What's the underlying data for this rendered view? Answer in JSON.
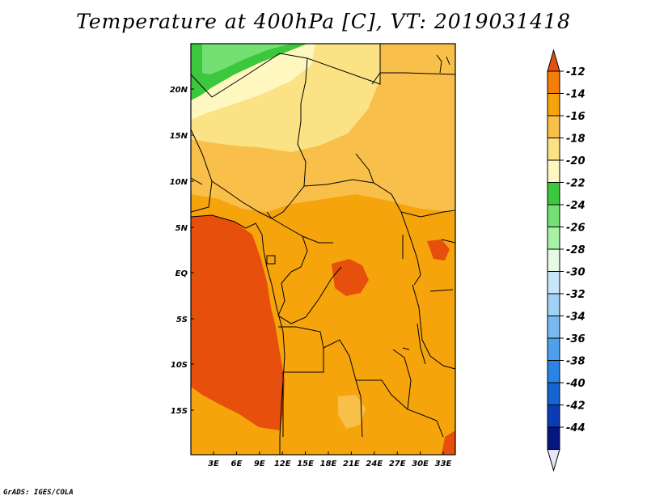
{
  "title": "Temperature at 400hPa [C], VT: 2019031418",
  "credit": "GrADS: IGES/COLA",
  "map": {
    "lat_labels": [
      "20N",
      "15N",
      "10N",
      "5N",
      "EQ",
      "5S",
      "10S",
      "15S"
    ],
    "lon_labels": [
      "3E",
      "6E",
      "9E",
      "12E",
      "15E",
      "18E",
      "21E",
      "24E",
      "27E",
      "30E",
      "33E"
    ]
  },
  "colorbar": {
    "levels": [
      "-12",
      "-14",
      "-16",
      "-18",
      "-20",
      "-22",
      "-24",
      "-26",
      "-28",
      "-30",
      "-32",
      "-34",
      "-36",
      "-38",
      "-40",
      "-42",
      "-44"
    ],
    "colors": [
      "#e6500c",
      "#f47d0c",
      "#f6a40c",
      "#f8c04a",
      "#fbe285",
      "#fef7c0",
      "#3cc83c",
      "#74e074",
      "#a8f2a8",
      "#e6fae6",
      "#c8e6f8",
      "#a0d2f5",
      "#78b9f0",
      "#4fa0ec",
      "#2a84e6",
      "#1464d2",
      "#0a3cb4",
      "#061680",
      "#e6e6fa"
    ]
  }
}
